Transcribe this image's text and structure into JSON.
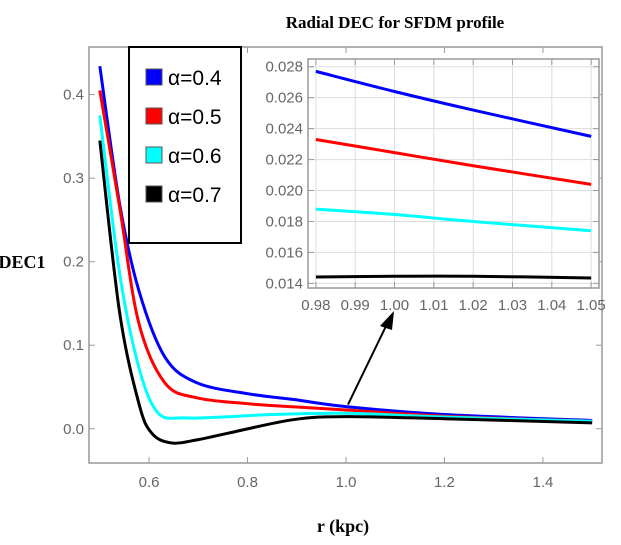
{
  "chart_data": [
    {
      "type": "line",
      "title": "Radial DEC for SFDM profile",
      "xlabel": "r (kpc)",
      "ylabel": "DEC1",
      "xlim": [
        0.478,
        1.52
      ],
      "ylim": [
        -0.041,
        0.457
      ],
      "xticks": [
        "0.6",
        "0.8",
        "1.0",
        "1.2",
        "1.4"
      ],
      "xtick_values": [
        0.6,
        0.8,
        1.0,
        1.2,
        1.4
      ],
      "yticks": [
        "0.0",
        "0.1",
        "0.2",
        "0.3",
        "0.4"
      ],
      "ytick_values": [
        0,
        0.1,
        0.2,
        0.3,
        0.4
      ],
      "grid": false,
      "legend_placement": "top-left",
      "series": [
        {
          "name": "α=0.4",
          "color": "#0000ff",
          "x": [
            0.5,
            0.54,
            0.579,
            0.632,
            0.697,
            0.8,
            0.894,
            1.0,
            1.2,
            1.5
          ],
          "y": [
            0.434,
            0.27,
            0.166,
            0.086,
            0.055,
            0.042,
            0.035,
            0.0265,
            0.017,
            0.01
          ]
        },
        {
          "name": "α=0.5",
          "color": "#ff0000",
          "x": [
            0.5,
            0.54,
            0.579,
            0.632,
            0.697,
            0.8,
            0.9,
            1.0,
            1.2,
            1.5
          ],
          "y": [
            0.405,
            0.266,
            0.127,
            0.055,
            0.037,
            0.03,
            0.026,
            0.0225,
            0.015,
            0.009
          ]
        },
        {
          "name": "α=0.6",
          "color": "#00ffff",
          "x": [
            0.5,
            0.54,
            0.579,
            0.618,
            0.671,
            0.75,
            0.85,
            1.0,
            1.2,
            1.5
          ],
          "y": [
            0.375,
            0.187,
            0.074,
            0.019,
            0.013,
            0.014,
            0.017,
            0.0185,
            0.014,
            0.009
          ]
        },
        {
          "name": "α=0.7",
          "color": "#000000",
          "x": [
            0.5,
            0.54,
            0.579,
            0.605,
            0.645,
            0.7,
            0.763,
            0.894,
            1.0,
            1.2,
            1.5
          ],
          "y": [
            0.345,
            0.14,
            0.031,
            -0.005,
            -0.017,
            -0.013,
            -0.005,
            0.011,
            0.0145,
            0.012,
            0.007
          ]
        }
      ]
    },
    {
      "type": "line",
      "title": "",
      "xlim": [
        0.978,
        1.052
      ],
      "ylim": [
        0.0137,
        0.0285
      ],
      "xticks": [
        "0.98",
        "0.99",
        "1.00",
        "1.01",
        "1.02",
        "1.03",
        "1.04",
        "1.05"
      ],
      "xtick_values": [
        0.98,
        0.99,
        1.0,
        1.01,
        1.02,
        1.03,
        1.04,
        1.05
      ],
      "yticks": [
        "0.014",
        "0.016",
        "0.018",
        "0.020",
        "0.022",
        "0.024",
        "0.026",
        "0.028"
      ],
      "ytick_values": [
        0.014,
        0.016,
        0.018,
        0.02,
        0.022,
        0.024,
        0.026,
        0.028
      ],
      "grid": true,
      "annotation": "arrow from r=1.0 on main curves to inset",
      "series": [
        {
          "color": "#0000ff",
          "x": [
            0.98,
            1.0,
            1.02,
            1.05
          ],
          "y": [
            0.0277,
            0.0264,
            0.0252,
            0.0235
          ]
        },
        {
          "color": "#ff0000",
          "x": [
            0.98,
            1.0,
            1.02,
            1.05
          ],
          "y": [
            0.0233,
            0.02245,
            0.0216,
            0.0204
          ]
        },
        {
          "color": "#00ffff",
          "x": [
            0.98,
            1.0,
            1.02,
            1.05
          ],
          "y": [
            0.0188,
            0.01845,
            0.018,
            0.0174
          ]
        },
        {
          "color": "#000000",
          "x": [
            0.98,
            1.0,
            1.02,
            1.05
          ],
          "y": [
            0.01441,
            0.01446,
            0.01446,
            0.01435
          ]
        }
      ]
    }
  ]
}
